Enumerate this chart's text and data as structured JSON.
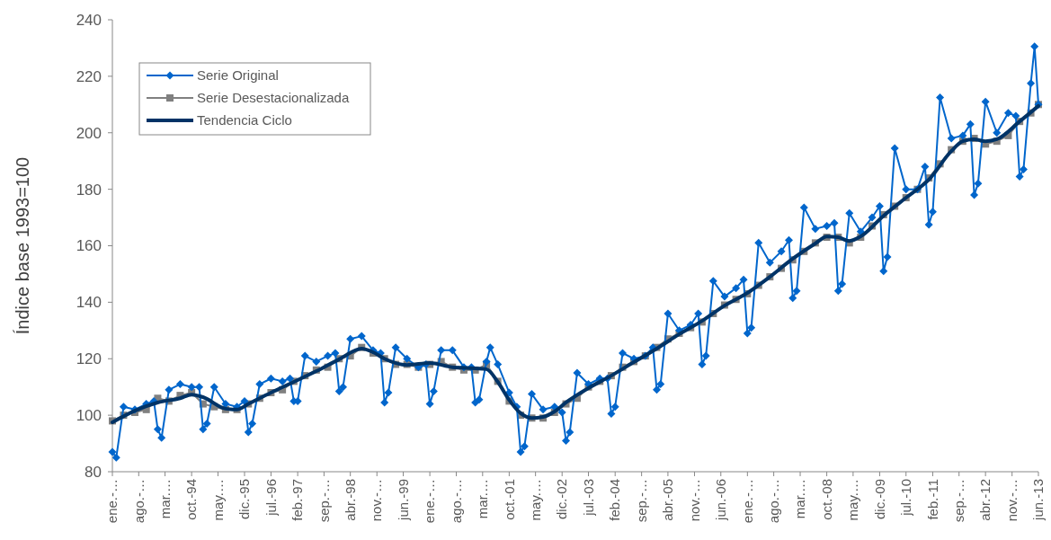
{
  "chart_data": {
    "type": "line",
    "ylabel": "Índice base 1993=100",
    "xlim": [
      "1993-01",
      "2013-06"
    ],
    "ylim": [
      80,
      240
    ],
    "yticks": [
      80,
      100,
      120,
      140,
      160,
      180,
      200,
      220,
      240
    ],
    "xticks": [
      {
        "value": "1993-01",
        "label": "ene.-…"
      },
      {
        "value": "1993-08",
        "label": "ago.-…"
      },
      {
        "value": "1994-03",
        "label": "mar.…"
      },
      {
        "value": "1994-10",
        "label": "oct.-94"
      },
      {
        "value": "1995-05",
        "label": "may.…"
      },
      {
        "value": "1995-12",
        "label": "dic.-95"
      },
      {
        "value": "1996-07",
        "label": "jul.-96"
      },
      {
        "value": "1997-02",
        "label": "feb.-97"
      },
      {
        "value": "1997-09",
        "label": "sep.-…"
      },
      {
        "value": "1998-04",
        "label": "abr.-98"
      },
      {
        "value": "1998-11",
        "label": "nov.-…"
      },
      {
        "value": "1999-06",
        "label": "jun.-99"
      },
      {
        "value": "2000-01",
        "label": "ene.-…"
      },
      {
        "value": "2000-08",
        "label": "ago.-…"
      },
      {
        "value": "2001-03",
        "label": "mar.…"
      },
      {
        "value": "2001-10",
        "label": "oct.-01"
      },
      {
        "value": "2002-05",
        "label": "may.…"
      },
      {
        "value": "2002-12",
        "label": "dic.-02"
      },
      {
        "value": "2003-07",
        "label": "jul.-03"
      },
      {
        "value": "2004-02",
        "label": "feb.-04"
      },
      {
        "value": "2004-09",
        "label": "sep.-…"
      },
      {
        "value": "2005-04",
        "label": "abr.-05"
      },
      {
        "value": "2005-11",
        "label": "nov.-…"
      },
      {
        "value": "2006-06",
        "label": "jun.-06"
      },
      {
        "value": "2007-01",
        "label": "ene.-…"
      },
      {
        "value": "2007-08",
        "label": "ago.-…"
      },
      {
        "value": "2008-03",
        "label": "mar.…"
      },
      {
        "value": "2008-10",
        "label": "oct.-08"
      },
      {
        "value": "2009-05",
        "label": "may.…"
      },
      {
        "value": "2009-12",
        "label": "dic.-09"
      },
      {
        "value": "2010-07",
        "label": "jul.-10"
      },
      {
        "value": "2011-02",
        "label": "feb.-11"
      },
      {
        "value": "2011-09",
        "label": "sep.-…"
      },
      {
        "value": "2012-04",
        "label": "abr.-12"
      },
      {
        "value": "2012-11",
        "label": "nov.-…"
      },
      {
        "value": "2013-06",
        "label": "jun.-13"
      }
    ],
    "grid": false,
    "legend": "top left",
    "series": [
      {
        "name": "Serie Original",
        "color": "#0066cc",
        "marker": "diamond",
        "x": [
          "1993-01",
          "1993-02",
          "1993-04",
          "1993-07",
          "1993-10",
          "1993-12",
          "1994-01",
          "1994-02",
          "1994-04",
          "1994-07",
          "1994-10",
          "1994-12",
          "1995-01",
          "1995-02",
          "1995-04",
          "1995-07",
          "1995-10",
          "1995-12",
          "1996-01",
          "1996-02",
          "1996-04",
          "1996-07",
          "1996-10",
          "1996-12",
          "1997-01",
          "1997-02",
          "1997-04",
          "1997-07",
          "1997-10",
          "1997-12",
          "1998-01",
          "1998-02",
          "1998-04",
          "1998-07",
          "1998-10",
          "1998-12",
          "1999-01",
          "1999-02",
          "1999-04",
          "1999-07",
          "1999-10",
          "1999-12",
          "2000-01",
          "2000-02",
          "2000-04",
          "2000-07",
          "2000-10",
          "2000-12",
          "2001-01",
          "2001-02",
          "2001-04",
          "2001-05",
          "2001-07",
          "2001-10",
          "2001-12",
          "2002-01",
          "2002-02",
          "2002-04",
          "2002-07",
          "2002-10",
          "2002-12",
          "2003-01",
          "2003-02",
          "2003-04",
          "2003-07",
          "2003-10",
          "2003-12",
          "2004-01",
          "2004-02",
          "2004-04",
          "2004-07",
          "2004-10",
          "2004-12",
          "2005-01",
          "2005-02",
          "2005-04",
          "2005-07",
          "2005-10",
          "2005-12",
          "2006-01",
          "2006-02",
          "2006-04",
          "2006-07",
          "2006-10",
          "2006-12",
          "2007-01",
          "2007-02",
          "2007-04",
          "2007-07",
          "2007-10",
          "2007-12",
          "2008-01",
          "2008-02",
          "2008-04",
          "2008-07",
          "2008-10",
          "2008-12",
          "2009-01",
          "2009-02",
          "2009-04",
          "2009-07",
          "2009-10",
          "2009-12",
          "2010-01",
          "2010-02",
          "2010-04",
          "2010-07",
          "2010-10",
          "2010-12",
          "2011-01",
          "2011-02",
          "2011-04",
          "2011-07",
          "2011-10",
          "2011-12",
          "2012-01",
          "2012-02",
          "2012-04",
          "2012-07",
          "2012-10",
          "2012-12",
          "2013-01",
          "2013-02",
          "2013-04",
          "2013-05",
          "2013-06"
        ],
        "values": [
          87,
          85,
          103,
          102,
          104,
          105,
          95,
          92,
          109,
          111,
          110,
          110,
          95,
          97,
          110,
          104,
          103,
          105,
          94,
          97,
          111,
          113,
          112,
          113,
          105,
          105,
          121,
          119,
          121,
          122,
          108.5,
          110,
          127,
          128,
          123,
          122,
          104.5,
          108,
          124,
          120,
          117,
          118,
          104,
          108.5,
          123,
          123,
          117,
          117,
          104.5,
          105.5,
          119,
          124,
          118,
          108,
          103,
          87,
          89,
          107.5,
          102,
          103,
          101,
          91,
          94,
          115,
          111,
          113,
          113,
          100.5,
          103,
          122,
          120,
          121,
          124,
          109,
          111,
          136,
          130,
          132,
          136,
          118,
          121,
          147.5,
          142,
          145,
          148,
          129,
          131,
          161,
          154,
          158,
          162,
          141.5,
          144,
          173.5,
          166,
          167,
          168,
          144,
          146.5,
          171.5,
          165,
          170,
          174,
          151,
          156,
          194.5,
          180,
          180,
          188,
          167.5,
          172,
          212.5,
          198,
          199,
          203,
          178,
          182,
          211,
          200,
          207,
          206,
          184.5,
          187,
          217.5,
          230.5,
          210
        ]
      },
      {
        "name": "Serie Desestacionalizada",
        "color": "#808080",
        "marker": "square",
        "x": [
          "1993-01",
          "1993-04",
          "1993-07",
          "1993-10",
          "1994-01",
          "1994-04",
          "1994-07",
          "1994-10",
          "1995-01",
          "1995-04",
          "1995-07",
          "1995-10",
          "1996-01",
          "1996-04",
          "1996-07",
          "1996-10",
          "1997-01",
          "1997-04",
          "1997-07",
          "1997-10",
          "1998-01",
          "1998-04",
          "1998-07",
          "1998-10",
          "1999-01",
          "1999-04",
          "1999-07",
          "1999-10",
          "2000-01",
          "2000-04",
          "2000-07",
          "2000-10",
          "2001-01",
          "2001-04",
          "2001-07",
          "2001-10",
          "2002-01",
          "2002-04",
          "2002-07",
          "2002-10",
          "2003-01",
          "2003-04",
          "2003-07",
          "2003-10",
          "2004-01",
          "2004-04",
          "2004-07",
          "2004-10",
          "2005-01",
          "2005-04",
          "2005-07",
          "2005-10",
          "2006-01",
          "2006-04",
          "2006-07",
          "2006-10",
          "2007-01",
          "2007-04",
          "2007-07",
          "2007-10",
          "2008-01",
          "2008-04",
          "2008-07",
          "2008-10",
          "2009-01",
          "2009-04",
          "2009-07",
          "2009-10",
          "2010-01",
          "2010-04",
          "2010-07",
          "2010-10",
          "2011-01",
          "2011-04",
          "2011-07",
          "2011-10",
          "2012-01",
          "2012-04",
          "2012-07",
          "2012-10",
          "2013-01",
          "2013-04",
          "2013-06"
        ],
        "values": [
          98,
          100,
          101,
          102,
          106,
          105,
          107,
          108,
          104,
          103,
          102,
          102,
          104,
          106,
          108,
          109,
          112,
          114,
          116,
          117,
          120,
          121,
          124,
          122,
          120,
          118,
          118,
          117,
          118,
          119,
          117,
          116,
          116,
          118,
          112,
          105,
          100,
          99,
          99,
          101,
          104,
          106,
          110,
          112,
          114,
          117,
          119,
          121,
          124,
          127,
          129,
          131,
          133,
          136,
          139,
          141,
          143,
          146,
          149,
          152,
          155,
          158,
          161,
          163,
          163,
          161,
          163,
          167,
          171,
          174,
          177,
          180,
          184,
          189,
          194,
          197,
          198,
          196,
          197,
          199,
          204,
          207,
          210
        ]
      },
      {
        "name": "Tendencia Ciclo",
        "color": "#003366",
        "marker": "none",
        "x": [
          "1993-01",
          "1993-07",
          "1994-01",
          "1994-07",
          "1994-10",
          "1995-01",
          "1995-07",
          "1995-10",
          "1996-01",
          "1996-07",
          "1997-01",
          "1997-07",
          "1998-01",
          "1998-07",
          "1998-10",
          "1999-01",
          "1999-07",
          "2000-01",
          "2000-07",
          "2001-01",
          "2001-04",
          "2001-07",
          "2001-10",
          "2002-01",
          "2002-04",
          "2002-07",
          "2002-10",
          "2003-01",
          "2003-07",
          "2004-01",
          "2004-07",
          "2005-01",
          "2005-07",
          "2006-01",
          "2006-07",
          "2007-01",
          "2007-07",
          "2008-01",
          "2008-07",
          "2008-10",
          "2009-01",
          "2009-04",
          "2009-07",
          "2010-01",
          "2010-07",
          "2011-01",
          "2011-07",
          "2011-10",
          "2012-01",
          "2012-04",
          "2012-07",
          "2013-01",
          "2013-06"
        ],
        "values": [
          97.5,
          101.6,
          104.5,
          106,
          107.3,
          106.4,
          102.3,
          102,
          104,
          108,
          111.8,
          115.6,
          119.8,
          123.6,
          122.3,
          120,
          117.8,
          118.5,
          117,
          116.6,
          116.3,
          111.8,
          105.4,
          100.7,
          99,
          99.4,
          101.3,
          104.5,
          109.6,
          114,
          118.8,
          123.6,
          128.7,
          133.4,
          138.8,
          143.3,
          149,
          155.4,
          160.8,
          163.3,
          163,
          161.7,
          163.3,
          170.6,
          177,
          183.4,
          193.5,
          197,
          197.7,
          197,
          197.7,
          204,
          209.5
        ]
      }
    ]
  }
}
